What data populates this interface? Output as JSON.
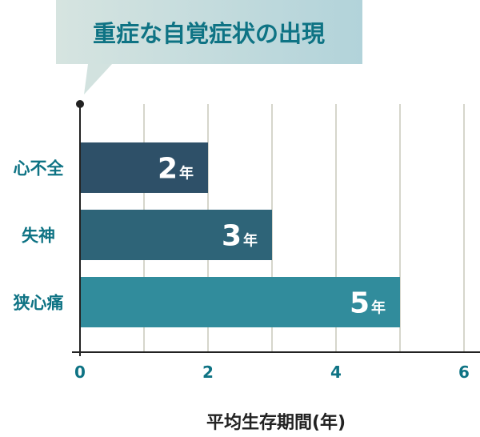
{
  "chart_data": {
    "type": "bar",
    "orientation": "horizontal",
    "title": "重症な自覚症状の出現",
    "xlabel": "平均生存期間(年)",
    "ylabel": "",
    "categories": [
      "心不全",
      "失神",
      "狭心痛"
    ],
    "values": [
      2,
      3,
      5
    ],
    "data_labels": [
      {
        "number": "2",
        "unit": "年"
      },
      {
        "number": "3",
        "unit": "年"
      },
      {
        "number": "5",
        "unit": "年"
      }
    ],
    "xlim": [
      0,
      6
    ],
    "xticks": [
      "0",
      "2",
      "4",
      "6"
    ],
    "grid": true,
    "colors": {
      "bars": [
        "#2e5068",
        "#2e6478",
        "#318c9c"
      ],
      "text": "#0e7384",
      "grid": "#d6d6cc",
      "callout_start": "#d6e4e0",
      "callout_end": "#b2d3da"
    }
  }
}
